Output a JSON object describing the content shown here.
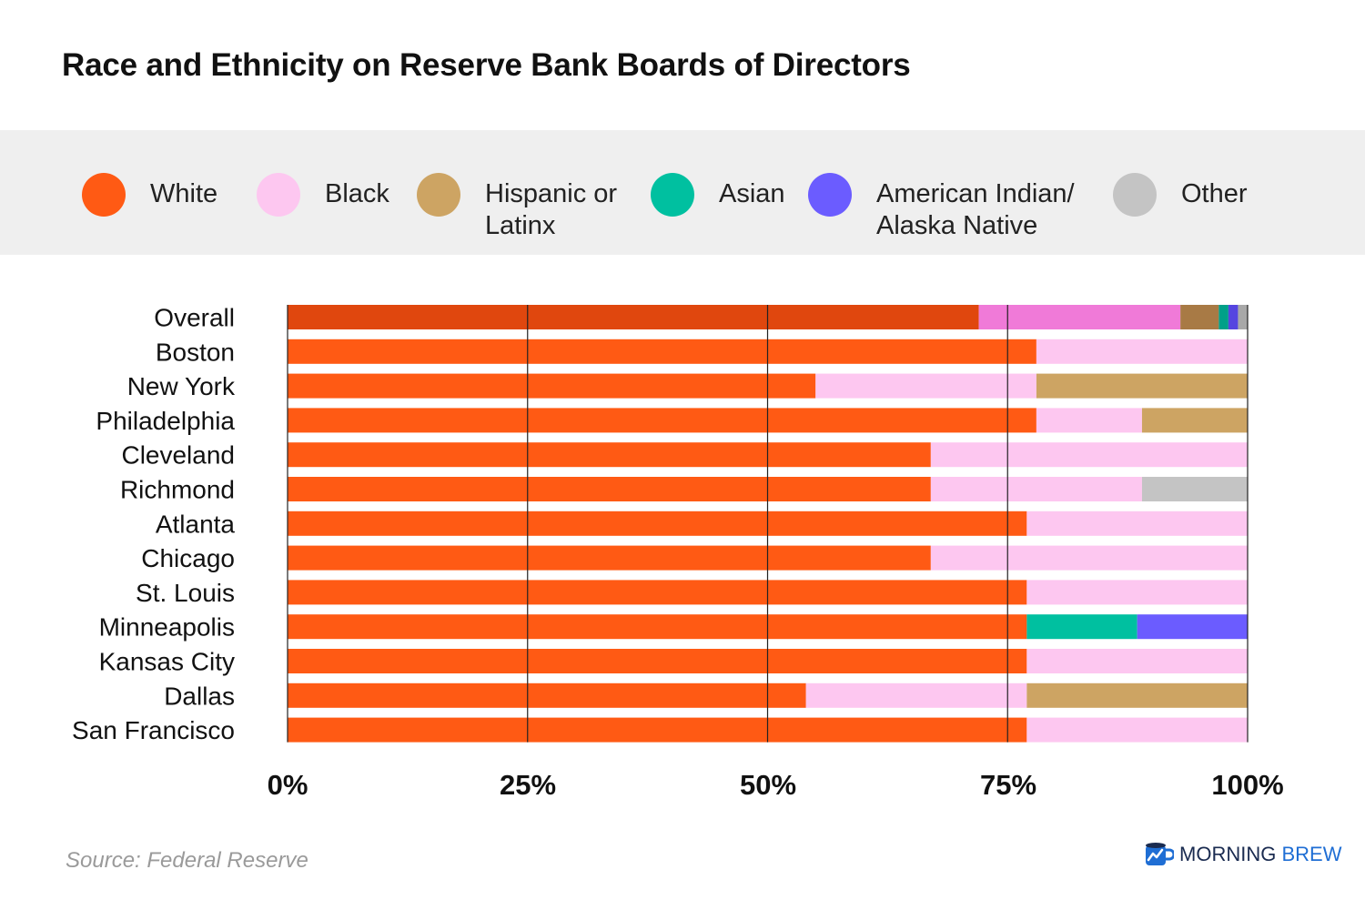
{
  "chart_data": {
    "type": "bar",
    "orientation": "horizontal",
    "stacked": true,
    "title": "Race and Ethnicity on Reserve Bank Boards of Directors",
    "categories": [
      "Overall",
      "Boston",
      "New York",
      "Philadelphia",
      "Cleveland",
      "Richmond",
      "Atlanta",
      "Chicago",
      "St. Louis",
      "Minneapolis",
      "Kansas City",
      "Dallas",
      "San Francisco"
    ],
    "series": [
      {
        "name": "White",
        "color": "#ff5a14",
        "values": [
          72,
          78,
          55,
          78,
          67,
          67,
          77,
          67,
          77,
          77,
          77,
          54,
          77
        ]
      },
      {
        "name": "Black",
        "color": "#fdc7f0",
        "values": [
          21,
          22,
          23,
          11,
          33,
          22,
          23,
          33,
          23,
          0,
          23,
          23,
          23
        ]
      },
      {
        "name": "Hispanic or Latinx",
        "color": "#cda463",
        "values": [
          4,
          0,
          22,
          11,
          0,
          0,
          0,
          0,
          0,
          0,
          0,
          23,
          0
        ]
      },
      {
        "name": "Asian",
        "color": "#00c0a0",
        "values": [
          1,
          0,
          0,
          0,
          0,
          0,
          0,
          0,
          0,
          11.5,
          0,
          0,
          0
        ]
      },
      {
        "name": "American Indian/ Alaska Native",
        "color": "#6b5cff",
        "values": [
          1,
          0,
          0,
          0,
          0,
          0,
          0,
          0,
          0,
          11.5,
          0,
          0,
          0
        ]
      },
      {
        "name": "Other",
        "color": "#c4c4c4",
        "values": [
          1,
          0,
          0,
          0,
          0,
          11,
          0,
          0,
          0,
          0,
          0,
          0,
          0
        ]
      }
    ],
    "overall_series_colors": [
      "#e0470e",
      "#f07ad8",
      "#a87a45",
      "#00a088",
      "#5545e0",
      "#a8a8a8"
    ],
    "xlim": [
      0,
      100
    ],
    "x_ticks": [
      0,
      25,
      50,
      75,
      100
    ],
    "x_tick_labels": [
      "0%",
      "25%",
      "50%",
      "75%",
      "100%"
    ],
    "grid": true,
    "legend_position": "top"
  },
  "legend_labels": {
    "white": "White",
    "black": "Black",
    "hispanic_line1": "Hispanic or",
    "hispanic_line2": "Latinx",
    "asian": "Asian",
    "native_line1": "American Indian/",
    "native_line2": "Alaska Native",
    "other": "Other"
  },
  "source": "Source: Federal Reserve",
  "brand": {
    "morning": "Morning",
    "brew": "Brew"
  }
}
